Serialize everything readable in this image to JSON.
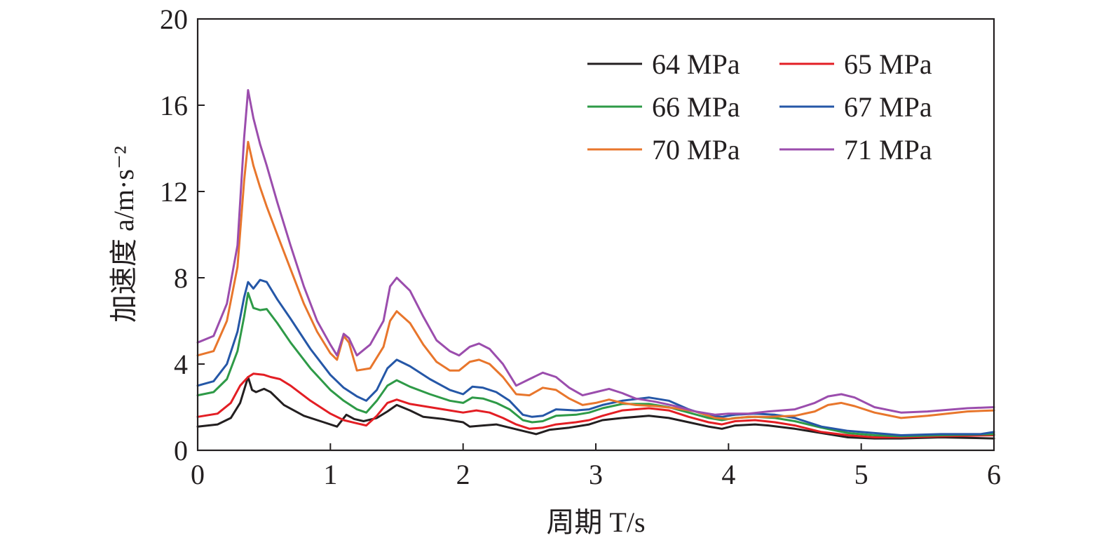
{
  "chart_data": {
    "type": "line",
    "xlabel": "周期 T/s",
    "ylabel": "加速度 a/m·s⁻²",
    "xlim": [
      0,
      6
    ],
    "ylim": [
      0,
      20
    ],
    "xticks": [
      "0",
      "1",
      "2",
      "3",
      "4",
      "5",
      "6"
    ],
    "yticks": [
      "0",
      "4",
      "8",
      "12",
      "16",
      "20"
    ],
    "grid": false,
    "legend_position": "top-right",
    "series": [
      {
        "name": "64 MPa",
        "color": "#231f20",
        "points": [
          [
            0,
            1.1
          ],
          [
            0.15,
            1.2
          ],
          [
            0.25,
            1.5
          ],
          [
            0.32,
            2.2
          ],
          [
            0.38,
            3.4
          ],
          [
            0.41,
            2.8
          ],
          [
            0.44,
            2.7
          ],
          [
            0.5,
            2.85
          ],
          [
            0.55,
            2.7
          ],
          [
            0.65,
            2.1
          ],
          [
            0.8,
            1.6
          ],
          [
            0.95,
            1.3
          ],
          [
            1.05,
            1.1
          ],
          [
            1.12,
            1.65
          ],
          [
            1.18,
            1.45
          ],
          [
            1.25,
            1.35
          ],
          [
            1.35,
            1.5
          ],
          [
            1.43,
            1.8
          ],
          [
            1.5,
            2.1
          ],
          [
            1.6,
            1.85
          ],
          [
            1.7,
            1.55
          ],
          [
            1.85,
            1.45
          ],
          [
            2.0,
            1.3
          ],
          [
            2.05,
            1.1
          ],
          [
            2.15,
            1.15
          ],
          [
            2.25,
            1.2
          ],
          [
            2.35,
            1.05
          ],
          [
            2.45,
            0.9
          ],
          [
            2.55,
            0.75
          ],
          [
            2.65,
            0.95
          ],
          [
            2.8,
            1.05
          ],
          [
            2.95,
            1.2
          ],
          [
            3.05,
            1.4
          ],
          [
            3.2,
            1.5
          ],
          [
            3.4,
            1.6
          ],
          [
            3.55,
            1.5
          ],
          [
            3.7,
            1.3
          ],
          [
            3.85,
            1.1
          ],
          [
            3.95,
            1.0
          ],
          [
            4.05,
            1.15
          ],
          [
            4.2,
            1.2
          ],
          [
            4.3,
            1.15
          ],
          [
            4.5,
            1.0
          ],
          [
            4.7,
            0.8
          ],
          [
            4.9,
            0.6
          ],
          [
            5.1,
            0.55
          ],
          [
            5.3,
            0.55
          ],
          [
            5.6,
            0.6
          ],
          [
            6.0,
            0.55
          ]
        ]
      },
      {
        "name": "65 MPa",
        "color": "#e31e24",
        "points": [
          [
            0,
            1.55
          ],
          [
            0.15,
            1.7
          ],
          [
            0.25,
            2.2
          ],
          [
            0.32,
            3.0
          ],
          [
            0.38,
            3.4
          ],
          [
            0.42,
            3.55
          ],
          [
            0.5,
            3.5
          ],
          [
            0.55,
            3.4
          ],
          [
            0.62,
            3.3
          ],
          [
            0.7,
            3.0
          ],
          [
            0.85,
            2.3
          ],
          [
            1.0,
            1.7
          ],
          [
            1.1,
            1.4
          ],
          [
            1.2,
            1.25
          ],
          [
            1.27,
            1.15
          ],
          [
            1.35,
            1.6
          ],
          [
            1.43,
            2.2
          ],
          [
            1.5,
            2.35
          ],
          [
            1.6,
            2.15
          ],
          [
            1.75,
            2.0
          ],
          [
            1.9,
            1.85
          ],
          [
            2.0,
            1.75
          ],
          [
            2.1,
            1.85
          ],
          [
            2.2,
            1.75
          ],
          [
            2.3,
            1.5
          ],
          [
            2.4,
            1.2
          ],
          [
            2.5,
            1.0
          ],
          [
            2.6,
            1.05
          ],
          [
            2.7,
            1.2
          ],
          [
            2.85,
            1.3
          ],
          [
            2.95,
            1.4
          ],
          [
            3.05,
            1.6
          ],
          [
            3.2,
            1.85
          ],
          [
            3.4,
            1.95
          ],
          [
            3.55,
            1.85
          ],
          [
            3.7,
            1.55
          ],
          [
            3.85,
            1.3
          ],
          [
            3.95,
            1.2
          ],
          [
            4.05,
            1.35
          ],
          [
            4.2,
            1.4
          ],
          [
            4.35,
            1.3
          ],
          [
            4.5,
            1.15
          ],
          [
            4.7,
            0.85
          ],
          [
            4.9,
            0.7
          ],
          [
            5.1,
            0.6
          ],
          [
            5.3,
            0.6
          ],
          [
            5.6,
            0.65
          ],
          [
            6.0,
            0.7
          ]
        ]
      },
      {
        "name": "66 MPa",
        "color": "#2e9a47",
        "points": [
          [
            0,
            2.55
          ],
          [
            0.12,
            2.7
          ],
          [
            0.22,
            3.3
          ],
          [
            0.3,
            4.6
          ],
          [
            0.35,
            6.2
          ],
          [
            0.38,
            7.3
          ],
          [
            0.42,
            6.6
          ],
          [
            0.47,
            6.5
          ],
          [
            0.52,
            6.55
          ],
          [
            0.6,
            5.9
          ],
          [
            0.7,
            5.0
          ],
          [
            0.85,
            3.8
          ],
          [
            1.0,
            2.8
          ],
          [
            1.1,
            2.3
          ],
          [
            1.2,
            1.9
          ],
          [
            1.27,
            1.75
          ],
          [
            1.35,
            2.3
          ],
          [
            1.43,
            3.0
          ],
          [
            1.5,
            3.25
          ],
          [
            1.6,
            2.95
          ],
          [
            1.75,
            2.6
          ],
          [
            1.9,
            2.3
          ],
          [
            2.0,
            2.2
          ],
          [
            2.07,
            2.45
          ],
          [
            2.15,
            2.4
          ],
          [
            2.25,
            2.2
          ],
          [
            2.35,
            1.9
          ],
          [
            2.45,
            1.4
          ],
          [
            2.52,
            1.3
          ],
          [
            2.6,
            1.35
          ],
          [
            2.7,
            1.6
          ],
          [
            2.85,
            1.65
          ],
          [
            2.95,
            1.75
          ],
          [
            3.05,
            1.95
          ],
          [
            3.2,
            2.15
          ],
          [
            3.4,
            2.15
          ],
          [
            3.55,
            2.0
          ],
          [
            3.7,
            1.75
          ],
          [
            3.85,
            1.5
          ],
          [
            3.95,
            1.4
          ],
          [
            4.05,
            1.5
          ],
          [
            4.2,
            1.55
          ],
          [
            4.35,
            1.5
          ],
          [
            4.5,
            1.35
          ],
          [
            4.7,
            1.05
          ],
          [
            4.9,
            0.8
          ],
          [
            5.1,
            0.7
          ],
          [
            5.3,
            0.65
          ],
          [
            5.6,
            0.7
          ],
          [
            6.0,
            0.75
          ]
        ]
      },
      {
        "name": "67 MPa",
        "color": "#2557a7",
        "points": [
          [
            0,
            3.0
          ],
          [
            0.12,
            3.2
          ],
          [
            0.22,
            4.0
          ],
          [
            0.3,
            5.5
          ],
          [
            0.35,
            7.1
          ],
          [
            0.38,
            7.8
          ],
          [
            0.42,
            7.5
          ],
          [
            0.47,
            7.9
          ],
          [
            0.52,
            7.8
          ],
          [
            0.6,
            7.0
          ],
          [
            0.7,
            6.1
          ],
          [
            0.85,
            4.7
          ],
          [
            1.0,
            3.5
          ],
          [
            1.1,
            2.9
          ],
          [
            1.2,
            2.5
          ],
          [
            1.27,
            2.3
          ],
          [
            1.35,
            2.8
          ],
          [
            1.43,
            3.8
          ],
          [
            1.5,
            4.2
          ],
          [
            1.6,
            3.9
          ],
          [
            1.75,
            3.3
          ],
          [
            1.9,
            2.8
          ],
          [
            2.0,
            2.6
          ],
          [
            2.07,
            2.95
          ],
          [
            2.15,
            2.9
          ],
          [
            2.25,
            2.7
          ],
          [
            2.35,
            2.3
          ],
          [
            2.45,
            1.65
          ],
          [
            2.52,
            1.55
          ],
          [
            2.6,
            1.6
          ],
          [
            2.7,
            1.9
          ],
          [
            2.85,
            1.85
          ],
          [
            2.95,
            1.9
          ],
          [
            3.05,
            2.1
          ],
          [
            3.2,
            2.3
          ],
          [
            3.4,
            2.45
          ],
          [
            3.55,
            2.3
          ],
          [
            3.7,
            1.9
          ],
          [
            3.85,
            1.6
          ],
          [
            3.95,
            1.55
          ],
          [
            4.05,
            1.65
          ],
          [
            4.2,
            1.7
          ],
          [
            4.35,
            1.65
          ],
          [
            4.5,
            1.5
          ],
          [
            4.7,
            1.1
          ],
          [
            4.9,
            0.9
          ],
          [
            5.1,
            0.8
          ],
          [
            5.3,
            0.7
          ],
          [
            5.6,
            0.75
          ],
          [
            5.9,
            0.75
          ],
          [
            6.0,
            0.85
          ]
        ]
      },
      {
        "name": "70 MPa",
        "color": "#e8762c",
        "points": [
          [
            0,
            4.4
          ],
          [
            0.12,
            4.6
          ],
          [
            0.22,
            6.0
          ],
          [
            0.3,
            8.5
          ],
          [
            0.35,
            12.5
          ],
          [
            0.38,
            14.3
          ],
          [
            0.42,
            13.2
          ],
          [
            0.47,
            12.2
          ],
          [
            0.52,
            11.3
          ],
          [
            0.6,
            10.0
          ],
          [
            0.7,
            8.4
          ],
          [
            0.8,
            6.8
          ],
          [
            0.9,
            5.5
          ],
          [
            1.0,
            4.5
          ],
          [
            1.05,
            4.2
          ],
          [
            1.1,
            5.3
          ],
          [
            1.14,
            5.0
          ],
          [
            1.2,
            3.7
          ],
          [
            1.3,
            3.8
          ],
          [
            1.4,
            4.8
          ],
          [
            1.45,
            6.0
          ],
          [
            1.5,
            6.45
          ],
          [
            1.6,
            5.9
          ],
          [
            1.7,
            4.9
          ],
          [
            1.8,
            4.1
          ],
          [
            1.9,
            3.7
          ],
          [
            1.97,
            3.7
          ],
          [
            2.05,
            4.1
          ],
          [
            2.12,
            4.2
          ],
          [
            2.2,
            4.0
          ],
          [
            2.3,
            3.4
          ],
          [
            2.4,
            2.6
          ],
          [
            2.5,
            2.55
          ],
          [
            2.6,
            2.9
          ],
          [
            2.7,
            2.8
          ],
          [
            2.8,
            2.4
          ],
          [
            2.9,
            2.1
          ],
          [
            3.0,
            2.2
          ],
          [
            3.1,
            2.35
          ],
          [
            3.2,
            2.2
          ],
          [
            3.3,
            2.1
          ],
          [
            3.45,
            2.05
          ],
          [
            3.6,
            1.95
          ],
          [
            3.75,
            1.8
          ],
          [
            3.9,
            1.5
          ],
          [
            4.0,
            1.45
          ],
          [
            4.15,
            1.55
          ],
          [
            4.3,
            1.55
          ],
          [
            4.5,
            1.6
          ],
          [
            4.65,
            1.8
          ],
          [
            4.75,
            2.1
          ],
          [
            4.85,
            2.2
          ],
          [
            4.95,
            2.05
          ],
          [
            5.1,
            1.75
          ],
          [
            5.3,
            1.5
          ],
          [
            5.5,
            1.6
          ],
          [
            5.8,
            1.8
          ],
          [
            6.0,
            1.85
          ]
        ]
      },
      {
        "name": "71 MPa",
        "color": "#9b4dad",
        "points": [
          [
            0,
            5.0
          ],
          [
            0.12,
            5.3
          ],
          [
            0.22,
            6.8
          ],
          [
            0.3,
            9.5
          ],
          [
            0.35,
            14.5
          ],
          [
            0.38,
            16.7
          ],
          [
            0.42,
            15.4
          ],
          [
            0.47,
            14.2
          ],
          [
            0.52,
            13.2
          ],
          [
            0.6,
            11.5
          ],
          [
            0.7,
            9.5
          ],
          [
            0.8,
            7.6
          ],
          [
            0.9,
            6.0
          ],
          [
            1.0,
            4.9
          ],
          [
            1.05,
            4.4
          ],
          [
            1.1,
            5.4
          ],
          [
            1.14,
            5.2
          ],
          [
            1.2,
            4.4
          ],
          [
            1.3,
            4.9
          ],
          [
            1.4,
            6.0
          ],
          [
            1.45,
            7.6
          ],
          [
            1.5,
            8.0
          ],
          [
            1.6,
            7.4
          ],
          [
            1.7,
            6.2
          ],
          [
            1.8,
            5.1
          ],
          [
            1.9,
            4.6
          ],
          [
            1.97,
            4.4
          ],
          [
            2.05,
            4.8
          ],
          [
            2.12,
            4.95
          ],
          [
            2.2,
            4.7
          ],
          [
            2.3,
            4.0
          ],
          [
            2.4,
            3.0
          ],
          [
            2.5,
            3.3
          ],
          [
            2.6,
            3.6
          ],
          [
            2.7,
            3.4
          ],
          [
            2.8,
            2.9
          ],
          [
            2.9,
            2.55
          ],
          [
            3.0,
            2.7
          ],
          [
            3.1,
            2.85
          ],
          [
            3.2,
            2.65
          ],
          [
            3.3,
            2.4
          ],
          [
            3.45,
            2.25
          ],
          [
            3.6,
            2.05
          ],
          [
            3.75,
            1.8
          ],
          [
            3.9,
            1.65
          ],
          [
            4.0,
            1.7
          ],
          [
            4.15,
            1.7
          ],
          [
            4.3,
            1.8
          ],
          [
            4.5,
            1.9
          ],
          [
            4.65,
            2.2
          ],
          [
            4.75,
            2.5
          ],
          [
            4.85,
            2.6
          ],
          [
            4.95,
            2.45
          ],
          [
            5.1,
            2.0
          ],
          [
            5.3,
            1.75
          ],
          [
            5.5,
            1.8
          ],
          [
            5.8,
            1.95
          ],
          [
            6.0,
            2.0
          ]
        ]
      }
    ]
  }
}
